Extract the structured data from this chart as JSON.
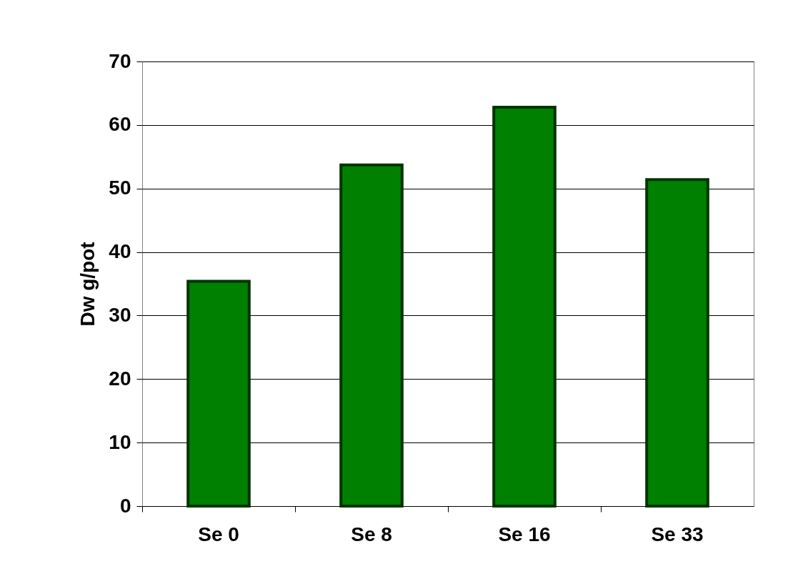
{
  "chart_data": {
    "type": "bar",
    "ylabel": "Dw g/pot",
    "categories": [
      "Se 0",
      "Se 8",
      "Se 16",
      "Se 33"
    ],
    "values": [
      35.4,
      53.7,
      62.8,
      51.4
    ],
    "color": "#008000",
    "ylim": [
      0,
      70
    ],
    "yticks": [
      0,
      10,
      20,
      30,
      40,
      50,
      60,
      70
    ],
    "grid": "y"
  }
}
